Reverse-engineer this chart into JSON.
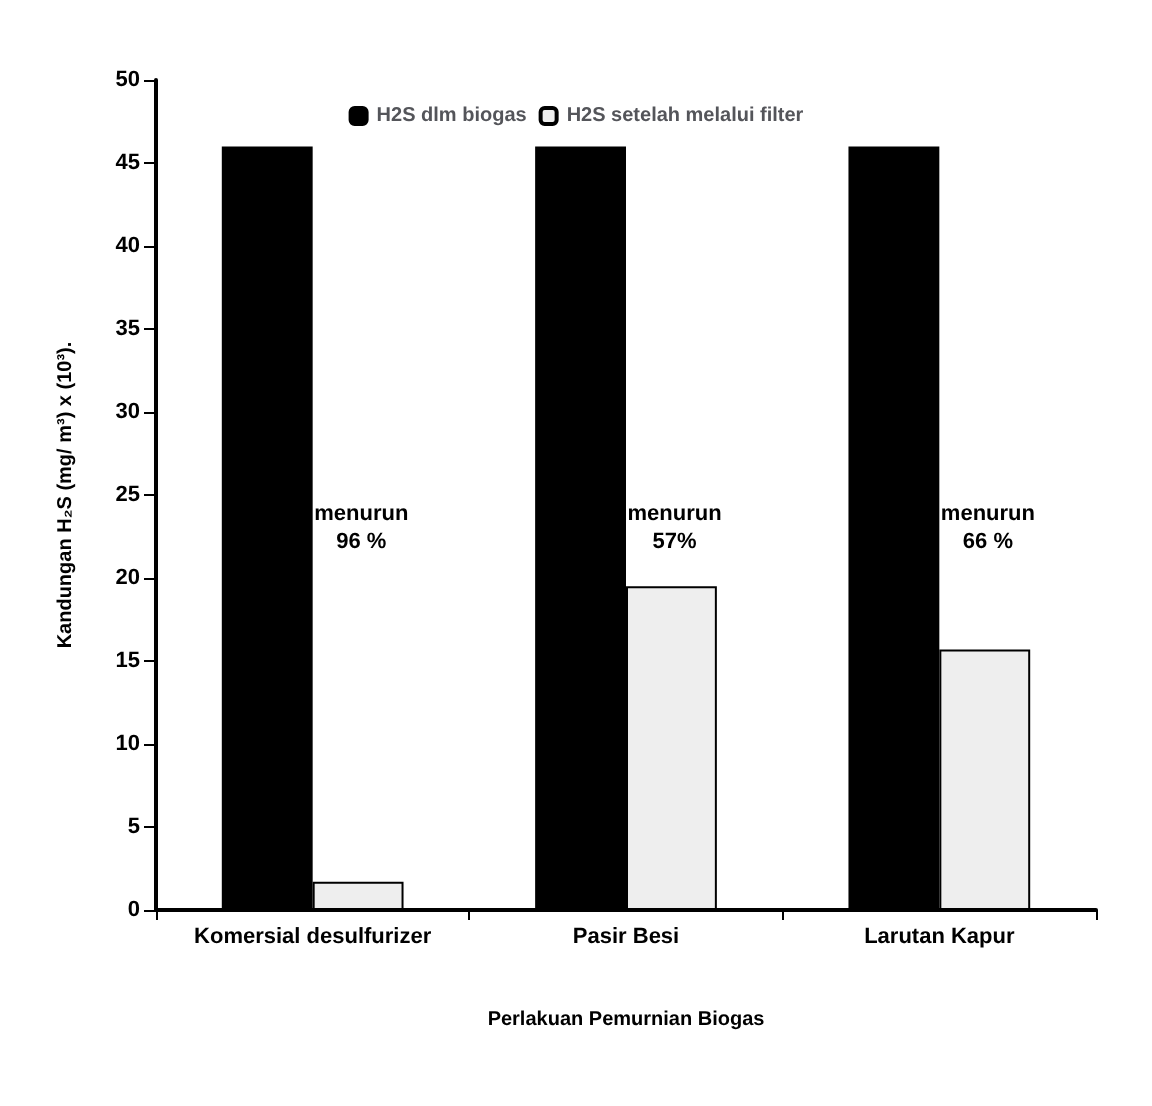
{
  "chart_data": {
    "type": "bar",
    "xlabel": "Perlakuan Pemurnian Biogas",
    "ylabel": "Kandungan H₂S (mg/ m³) x (10³).",
    "categories": [
      "Komersial desulfurizer",
      "Pasir Besi",
      "Larutan Kapur"
    ],
    "series": [
      {
        "name": "H2S dlm biogas",
        "color": "#000000",
        "values": [
          46,
          46,
          46
        ]
      },
      {
        "name": "H2S setelah melalui filter",
        "color": "#eeeeee",
        "values": [
          1.7,
          19.5,
          15.7
        ]
      }
    ],
    "ylim": [
      0,
      50
    ],
    "yticks": [
      0,
      5,
      10,
      15,
      20,
      25,
      30,
      35,
      40,
      45,
      50
    ],
    "grid": false,
    "legend": "top",
    "annotations": [
      {
        "text": "menurun\n96 %",
        "x": "Komersial desulfurizer",
        "y": 23
      },
      {
        "text": "menurun\n57%",
        "x": "Pasir Besi",
        "y": 23
      },
      {
        "text": "menurun\n66 %",
        "x": "Larutan Kapur",
        "y": 23
      }
    ]
  }
}
